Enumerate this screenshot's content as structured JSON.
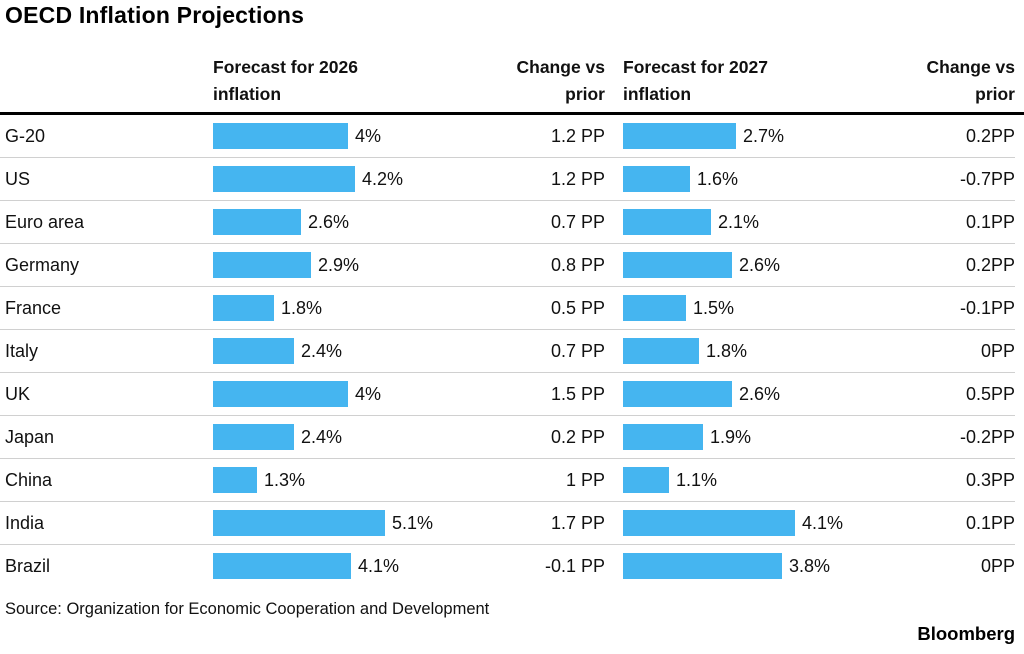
{
  "title": "OECD Inflation Projections",
  "header": {
    "col_2026": "Forecast for 2026\ninflation",
    "col_change_2026": "Change vs\nprior",
    "col_2027": "Forecast for 2027\ninflation",
    "col_change_2027": "Change vs\nprior"
  },
  "rows": [
    {
      "country": "G-20",
      "value_2026": 4.0,
      "label_2026": "4%",
      "change_2026": "1.2 PP",
      "value_2027": 2.7,
      "label_2027": "2.7%",
      "change_2027": "0.2PP"
    },
    {
      "country": "US",
      "value_2026": 4.2,
      "label_2026": "4.2%",
      "change_2026": "1.2 PP",
      "value_2027": 1.6,
      "label_2027": "1.6%",
      "change_2027": "-0.7PP"
    },
    {
      "country": "Euro area",
      "value_2026": 2.6,
      "label_2026": "2.6%",
      "change_2026": "0.7 PP",
      "value_2027": 2.1,
      "label_2027": "2.1%",
      "change_2027": "0.1PP"
    },
    {
      "country": "Germany",
      "value_2026": 2.9,
      "label_2026": "2.9%",
      "change_2026": "0.8 PP",
      "value_2027": 2.6,
      "label_2027": "2.6%",
      "change_2027": "0.2PP"
    },
    {
      "country": "France",
      "value_2026": 1.8,
      "label_2026": "1.8%",
      "change_2026": "0.5 PP",
      "value_2027": 1.5,
      "label_2027": "1.5%",
      "change_2027": "-0.1PP"
    },
    {
      "country": "Italy",
      "value_2026": 2.4,
      "label_2026": "2.4%",
      "change_2026": "0.7 PP",
      "value_2027": 1.8,
      "label_2027": "1.8%",
      "change_2027": "0PP"
    },
    {
      "country": "UK",
      "value_2026": 4.0,
      "label_2026": "4%",
      "change_2026": "1.5 PP",
      "value_2027": 2.6,
      "label_2027": "2.6%",
      "change_2027": "0.5PP"
    },
    {
      "country": "Japan",
      "value_2026": 2.4,
      "label_2026": "2.4%",
      "change_2026": "0.2 PP",
      "value_2027": 1.9,
      "label_2027": "1.9%",
      "change_2027": "-0.2PP"
    },
    {
      "country": "China",
      "value_2026": 1.3,
      "label_2026": "1.3%",
      "change_2026": "1 PP",
      "value_2027": 1.1,
      "label_2027": "1.1%",
      "change_2027": "0.3PP"
    },
    {
      "country": "India",
      "value_2026": 5.1,
      "label_2026": "5.1%",
      "change_2026": "1.7 PP",
      "value_2027": 4.1,
      "label_2027": "4.1%",
      "change_2027": "0.1PP"
    },
    {
      "country": "Brazil",
      "value_2026": 4.1,
      "label_2026": "4.1%",
      "change_2026": "-0.1 PP",
      "value_2027": 3.8,
      "label_2027": "3.8%",
      "change_2027": "0PP"
    }
  ],
  "footer": {
    "source": "Source: Organization for Economic Cooperation and Development",
    "brand": "Bloomberg"
  },
  "colors": {
    "bar_blue": "#45b5f0",
    "separator": "#d0d0d0",
    "table_top_border": "#000000"
  },
  "chart_data": {
    "type": "bar",
    "orientation": "horizontal",
    "title": "OECD Inflation Projections",
    "categories": [
      "G-20",
      "US",
      "Euro area",
      "Germany",
      "France",
      "Italy",
      "UK",
      "Japan",
      "China",
      "India",
      "Brazil"
    ],
    "series": [
      {
        "name": "Forecast for 2026 inflation (%)",
        "values": [
          4.0,
          4.2,
          2.6,
          2.9,
          1.8,
          2.4,
          4.0,
          2.4,
          1.3,
          5.1,
          4.1
        ]
      },
      {
        "name": "Change vs prior, 2026 (PP)",
        "values": [
          1.2,
          1.2,
          0.7,
          0.8,
          0.5,
          0.7,
          1.5,
          0.2,
          1,
          1.7,
          -0.1
        ]
      },
      {
        "name": "Forecast for 2027 inflation (%)",
        "values": [
          2.7,
          1.6,
          2.1,
          2.6,
          1.5,
          1.8,
          2.6,
          1.9,
          1.1,
          4.1,
          3.8
        ]
      },
      {
        "name": "Change vs prior, 2027 (PP)",
        "values": [
          0.2,
          -0.7,
          0.1,
          0.2,
          -0.1,
          0,
          0.5,
          -0.2,
          0.3,
          0.1,
          0
        ]
      }
    ],
    "value_axis_range_2026": [
      0,
      5.1
    ],
    "value_axis_range_2027": [
      0,
      4.1
    ],
    "grid": false,
    "legend_position": "column-headers",
    "source": "Source: Organization for Economic Cooperation and Development"
  }
}
